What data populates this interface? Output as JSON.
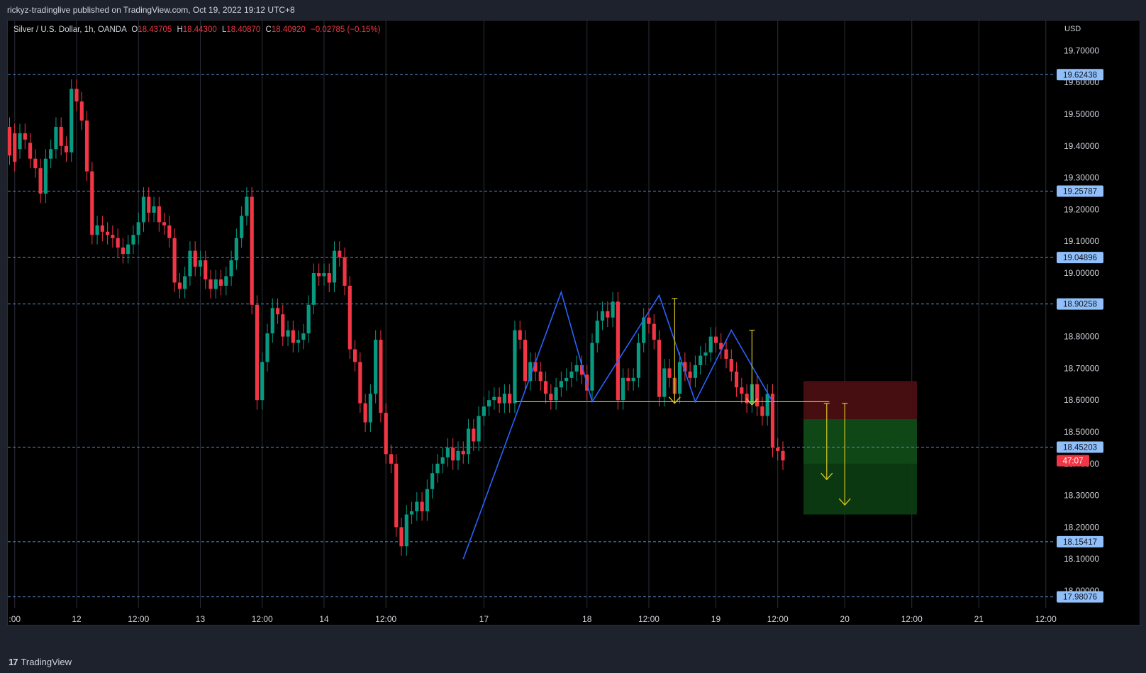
{
  "header": {
    "publisher_text": "rickyz-tradinglive published on TradingView.com, Oct 19, 2022 19:12 UTC+8"
  },
  "legend": {
    "symbol": "Silver / U.S. Dollar, 1h, OANDA",
    "open_label": "O",
    "open": "18.43705",
    "high_label": "H",
    "high": "18.44300",
    "low_label": "L",
    "low": "18.40870",
    "close_label": "C",
    "close": "18.40920",
    "change": "−0.02785 (−0.15%)"
  },
  "footer": {
    "brand": "TradingView"
  },
  "colors": {
    "up": "#089981",
    "down": "#f23645",
    "pattern_line": "#2962ff",
    "neckline": "#d4c524",
    "hline": "#5b8fd6",
    "label_bg": "#90bff9",
    "price_tag": "#f23645",
    "stop_zone": "#4a0f12",
    "target_zone": "#0d3b12"
  },
  "chart_data": {
    "type": "candlestick",
    "currency_label": "USD",
    "y_ticks": [
      "18.00000",
      "18.10000",
      "18.20000",
      "18.30000",
      "18.40000",
      "18.50000",
      "18.60000",
      "18.70000",
      "18.80000",
      "18.90000",
      "19.00000",
      "19.10000",
      "19.20000",
      "19.30000",
      "19.40000",
      "19.50000",
      "19.60000",
      "19.70000"
    ],
    "ylim": [
      17.97,
      19.75
    ],
    "x_ticks": [
      {
        "label": ":00",
        "bar": -12
      },
      {
        "label": "12",
        "bar": 0
      },
      {
        "label": "12:00",
        "bar": 12
      },
      {
        "label": "13",
        "bar": 24
      },
      {
        "label": "12:00",
        "bar": 36
      },
      {
        "label": "14",
        "bar": 48
      },
      {
        "label": "12:00",
        "bar": 60
      },
      {
        "label": "17",
        "bar": 79
      },
      {
        "label": "18",
        "bar": 99
      },
      {
        "label": "12:00",
        "bar": 111
      },
      {
        "label": "19",
        "bar": 124
      },
      {
        "label": "12:00",
        "bar": 136
      },
      {
        "label": "20",
        "bar": 149
      },
      {
        "label": "12:00",
        "bar": 162
      },
      {
        "label": "21",
        "bar": 175
      },
      {
        "label": "12:00",
        "bar": 188
      }
    ],
    "horizontal_levels": [
      "19.62438",
      "19.25787",
      "19.04896",
      "18.90258",
      "18.45203",
      "18.15417",
      "17.98076"
    ],
    "current_price_tag": "47:07",
    "neckline": 18.595,
    "pattern_points": [
      [
        75,
        18.1
      ],
      [
        94,
        18.94
      ],
      [
        100,
        18.595
      ],
      [
        113,
        18.93
      ],
      [
        120,
        18.595
      ],
      [
        127,
        18.82
      ],
      [
        135,
        18.595
      ]
    ],
    "position": {
      "bar_start": 141,
      "bar_end": 163,
      "stop_top": 18.66,
      "entry": 18.54,
      "target": 18.24
    },
    "projection_arrows": [
      {
        "bar": 116,
        "from": 18.92,
        "to": 18.59
      },
      {
        "bar": 131,
        "from": 18.82,
        "to": 18.585
      },
      {
        "bar": 145.5,
        "from": 18.59,
        "to": 18.35
      },
      {
        "bar": 149,
        "from": 18.59,
        "to": 18.27
      }
    ],
    "candles": [
      [
        -13,
        19.46,
        19.37
      ],
      [
        -12,
        19.44,
        19.35
      ],
      [
        -11,
        19.39,
        19.44
      ],
      [
        -10,
        19.44,
        19.42
      ],
      [
        -9,
        19.41,
        19.36
      ],
      [
        -8,
        19.36,
        19.33
      ],
      [
        -7,
        19.33,
        19.25
      ],
      [
        -6,
        19.25,
        19.36
      ],
      [
        -5,
        19.36,
        19.39
      ],
      [
        -4,
        19.39,
        19.46
      ],
      [
        -3,
        19.46,
        19.4
      ],
      [
        -2,
        19.4,
        19.38
      ],
      [
        -1,
        19.38,
        19.58
      ],
      [
        0,
        19.58,
        19.54
      ],
      [
        1,
        19.54,
        19.48
      ],
      [
        2,
        19.48,
        19.32
      ],
      [
        3,
        19.32,
        19.12
      ],
      [
        4,
        19.12,
        19.15
      ],
      [
        5,
        19.15,
        19.13
      ],
      [
        6,
        19.13,
        19.12
      ],
      [
        7,
        19.12,
        19.11
      ],
      [
        8,
        19.11,
        19.08
      ],
      [
        9,
        19.08,
        19.06
      ],
      [
        10,
        19.06,
        19.09
      ],
      [
        11,
        19.09,
        19.12
      ],
      [
        12,
        19.12,
        19.16
      ],
      [
        13,
        19.16,
        19.24
      ],
      [
        14,
        19.24,
        19.19
      ],
      [
        15,
        19.19,
        19.21
      ],
      [
        16,
        19.21,
        19.16
      ],
      [
        17,
        19.16,
        19.15
      ],
      [
        18,
        19.15,
        19.11
      ],
      [
        19,
        19.11,
        18.97
      ],
      [
        20,
        18.97,
        18.95
      ],
      [
        21,
        18.95,
        18.99
      ],
      [
        22,
        18.99,
        19.07
      ],
      [
        23,
        19.07,
        19.02
      ],
      [
        24,
        19.02,
        19.04
      ],
      [
        25,
        19.04,
        18.98
      ],
      [
        26,
        18.98,
        18.95
      ],
      [
        27,
        18.95,
        18.98
      ],
      [
        28,
        18.98,
        18.96
      ],
      [
        29,
        18.96,
        18.99
      ],
      [
        30,
        18.99,
        19.04
      ],
      [
        31,
        19.04,
        19.11
      ],
      [
        32,
        19.11,
        19.18
      ],
      [
        33,
        19.18,
        19.24
      ],
      [
        34,
        19.24,
        18.9
      ],
      [
        35,
        18.9,
        18.6
      ],
      [
        36,
        18.6,
        18.72
      ],
      [
        37,
        18.72,
        18.81
      ],
      [
        38,
        18.81,
        18.89
      ],
      [
        39,
        18.89,
        18.87
      ],
      [
        40,
        18.87,
        18.8
      ],
      [
        41,
        18.8,
        18.82
      ],
      [
        42,
        18.82,
        18.78
      ],
      [
        43,
        18.78,
        18.79
      ],
      [
        44,
        18.79,
        18.81
      ],
      [
        45,
        18.81,
        18.9
      ],
      [
        46,
        18.9,
        19.0
      ],
      [
        47,
        19.0,
        18.99
      ],
      [
        48,
        18.99,
        19.0
      ],
      [
        49,
        19.0,
        18.97
      ],
      [
        50,
        18.97,
        19.07
      ],
      [
        51,
        19.07,
        19.05
      ],
      [
        52,
        19.05,
        18.96
      ],
      [
        53,
        18.96,
        18.76
      ],
      [
        54,
        18.76,
        18.72
      ],
      [
        55,
        18.72,
        18.59
      ],
      [
        56,
        18.59,
        18.53
      ],
      [
        57,
        18.53,
        18.62
      ],
      [
        58,
        18.62,
        18.79
      ],
      [
        59,
        18.79,
        18.56
      ],
      [
        60,
        18.56,
        18.43
      ],
      [
        61,
        18.43,
        18.4
      ],
      [
        62,
        18.4,
        18.2
      ],
      [
        63,
        18.2,
        18.14
      ],
      [
        64,
        18.14,
        18.24
      ],
      [
        65,
        18.24,
        18.25
      ],
      [
        66,
        18.25,
        18.28
      ],
      [
        67,
        18.28,
        18.25
      ],
      [
        68,
        18.25,
        18.32
      ],
      [
        69,
        18.32,
        18.37
      ],
      [
        70,
        18.37,
        18.4
      ],
      [
        71,
        18.4,
        18.42
      ],
      [
        72,
        18.42,
        18.45
      ],
      [
        73,
        18.45,
        18.41
      ],
      [
        74,
        18.41,
        18.44
      ],
      [
        75,
        18.44,
        18.43
      ],
      [
        76,
        18.43,
        18.51
      ],
      [
        77,
        18.51,
        18.47
      ],
      [
        78,
        18.47,
        18.55
      ],
      [
        79,
        18.55,
        18.58
      ],
      [
        80,
        18.58,
        18.6
      ],
      [
        81,
        18.6,
        18.61
      ],
      [
        82,
        18.61,
        18.59
      ],
      [
        83,
        18.59,
        18.62
      ],
      [
        84,
        18.62,
        18.59
      ],
      [
        85,
        18.59,
        18.82
      ],
      [
        86,
        18.82,
        18.79
      ],
      [
        87,
        18.79,
        18.66
      ],
      [
        88,
        18.66,
        18.72
      ],
      [
        89,
        18.72,
        18.69
      ],
      [
        90,
        18.69,
        18.66
      ],
      [
        91,
        18.66,
        18.62
      ],
      [
        92,
        18.62,
        18.6
      ],
      [
        93,
        18.6,
        18.64
      ],
      [
        94,
        18.64,
        18.66
      ],
      [
        95,
        18.66,
        18.67
      ],
      [
        96,
        18.67,
        18.69
      ],
      [
        97,
        18.69,
        18.71
      ],
      [
        98,
        18.71,
        18.68
      ],
      [
        99,
        18.68,
        18.63
      ],
      [
        100,
        18.63,
        18.78
      ],
      [
        101,
        18.78,
        18.85
      ],
      [
        102,
        18.85,
        18.88
      ],
      [
        103,
        18.88,
        18.86
      ],
      [
        104,
        18.86,
        18.91
      ],
      [
        105,
        18.91,
        18.6
      ],
      [
        106,
        18.6,
        18.67
      ],
      [
        107,
        18.67,
        18.66
      ],
      [
        108,
        18.66,
        18.67
      ],
      [
        109,
        18.67,
        18.78
      ],
      [
        110,
        18.78,
        18.86
      ],
      [
        111,
        18.86,
        18.84
      ],
      [
        112,
        18.84,
        18.79
      ],
      [
        113,
        18.79,
        18.61
      ],
      [
        114,
        18.61,
        18.7
      ],
      [
        115,
        18.7,
        18.67
      ],
      [
        116,
        18.67,
        18.62
      ],
      [
        117,
        18.62,
        18.72
      ],
      [
        118,
        18.72,
        18.69
      ],
      [
        119,
        18.69,
        18.67
      ],
      [
        120,
        18.67,
        18.71
      ],
      [
        121,
        18.71,
        18.74
      ],
      [
        122,
        18.74,
        18.75
      ],
      [
        123,
        18.75,
        18.8
      ],
      [
        124,
        18.8,
        18.78
      ],
      [
        125,
        18.78,
        18.76
      ],
      [
        126,
        18.76,
        18.73
      ],
      [
        127,
        18.73,
        18.69
      ],
      [
        128,
        18.69,
        18.64
      ],
      [
        129,
        18.64,
        18.62
      ],
      [
        130,
        18.62,
        18.59
      ],
      [
        131,
        18.59,
        18.65
      ],
      [
        132,
        18.65,
        18.58
      ],
      [
        133,
        18.58,
        18.55
      ],
      [
        134,
        18.55,
        18.62
      ],
      [
        135,
        18.62,
        18.45
      ],
      [
        136,
        18.45,
        18.44
      ],
      [
        137,
        18.44,
        18.41
      ]
    ]
  }
}
